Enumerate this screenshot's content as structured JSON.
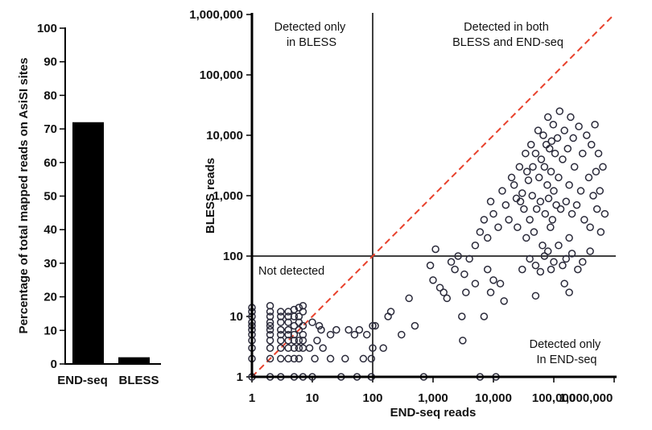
{
  "chart_data": [
    {
      "type": "bar",
      "title": "",
      "xlabel": "",
      "ylabel": "Percentage of total mapped reads on AsiSI sites",
      "ylim": [
        0,
        100
      ],
      "yticks": [
        0,
        10,
        20,
        30,
        40,
        50,
        60,
        70,
        80,
        90,
        100
      ],
      "categories": [
        "END-seq",
        "BLESS"
      ],
      "values": [
        72,
        2
      ],
      "bar_color": "#000000",
      "grid": false
    },
    {
      "type": "scatter",
      "title": "",
      "xlabel": "END-seq reads",
      "ylabel": "BLESS reads",
      "xscale": "log",
      "yscale": "log",
      "xlim": [
        1,
        1000000
      ],
      "ylim": [
        1,
        1000000
      ],
      "xticks": [
        "1",
        "10",
        "100",
        "1,000",
        "10,000",
        "100,000",
        "1,000,000"
      ],
      "yticks": [
        "1",
        "10",
        "100",
        "1,000",
        "10,000",
        "100,000",
        "1,000,000"
      ],
      "reference_line": {
        "style": "dashed",
        "color": "#e8412c",
        "from": [
          1,
          1
        ],
        "to": [
          1000000,
          1000000
        ]
      },
      "threshold_lines": {
        "x": 100,
        "y": 100,
        "color": "#000000"
      },
      "quadrant_labels": {
        "top_left": [
          "Detected only",
          "in BLESS"
        ],
        "top_right": [
          "Detected in both",
          "BLESS and END-seq"
        ],
        "bottom_left": [
          "Not detected"
        ],
        "bottom_right": [
          "Detected only",
          "In END-seq"
        ]
      },
      "marker": {
        "shape": "open-circle",
        "color": "#2a2a3a"
      },
      "points": [
        [
          1,
          1
        ],
        [
          1,
          2
        ],
        [
          1,
          3
        ],
        [
          1,
          4
        ],
        [
          1,
          5
        ],
        [
          1,
          6
        ],
        [
          1,
          7
        ],
        [
          1,
          8
        ],
        [
          1,
          10
        ],
        [
          1,
          12
        ],
        [
          1,
          14
        ],
        [
          2,
          1
        ],
        [
          2,
          2
        ],
        [
          2,
          3
        ],
        [
          2,
          4
        ],
        [
          2,
          5
        ],
        [
          2,
          6
        ],
        [
          2,
          7
        ],
        [
          2,
          8
        ],
        [
          2,
          10
        ],
        [
          2,
          12
        ],
        [
          2,
          15
        ],
        [
          3,
          1
        ],
        [
          3,
          2
        ],
        [
          3,
          3
        ],
        [
          3,
          4
        ],
        [
          3,
          5
        ],
        [
          3,
          6
        ],
        [
          3,
          8
        ],
        [
          3,
          10
        ],
        [
          3,
          12
        ],
        [
          4,
          2
        ],
        [
          4,
          3
        ],
        [
          4,
          4
        ],
        [
          4,
          5
        ],
        [
          4,
          6
        ],
        [
          4,
          8
        ],
        [
          4,
          10
        ],
        [
          4,
          12
        ],
        [
          5,
          1
        ],
        [
          5,
          2
        ],
        [
          5,
          3
        ],
        [
          5,
          4
        ],
        [
          5,
          5
        ],
        [
          5,
          7
        ],
        [
          5,
          10
        ],
        [
          5,
          13
        ],
        [
          6,
          2
        ],
        [
          6,
          3
        ],
        [
          6,
          4
        ],
        [
          6,
          6
        ],
        [
          6,
          8
        ],
        [
          6,
          10
        ],
        [
          6,
          14
        ],
        [
          7,
          1
        ],
        [
          7,
          3
        ],
        [
          7,
          4
        ],
        [
          7,
          5
        ],
        [
          7,
          7
        ],
        [
          7,
          12
        ],
        [
          7,
          15
        ],
        [
          9,
          3
        ],
        [
          10,
          1
        ],
        [
          10,
          8
        ],
        [
          11,
          2
        ],
        [
          12,
          4
        ],
        [
          13,
          7
        ],
        [
          14,
          6
        ],
        [
          15,
          3
        ],
        [
          20,
          2
        ],
        [
          20,
          5
        ],
        [
          25,
          6
        ],
        [
          30,
          1
        ],
        [
          35,
          2
        ],
        [
          40,
          6
        ],
        [
          50,
          5
        ],
        [
          55,
          1
        ],
        [
          60,
          6
        ],
        [
          70,
          2
        ],
        [
          80,
          5
        ],
        [
          95,
          1
        ],
        [
          95,
          2
        ],
        [
          100,
          3
        ],
        [
          100,
          7
        ],
        [
          110,
          7
        ],
        [
          150,
          3
        ],
        [
          180,
          10
        ],
        [
          200,
          12
        ],
        [
          300,
          5
        ],
        [
          400,
          20
        ],
        [
          500,
          7
        ],
        [
          700,
          1
        ],
        [
          900,
          70
        ],
        [
          1000,
          40
        ],
        [
          1100,
          130
        ],
        [
          1300,
          30
        ],
        [
          1500,
          25
        ],
        [
          1700,
          20
        ],
        [
          2000,
          80
        ],
        [
          2300,
          60
        ],
        [
          2600,
          100
        ],
        [
          3000,
          10
        ],
        [
          3100,
          4
        ],
        [
          3300,
          50
        ],
        [
          3500,
          25
        ],
        [
          4000,
          90
        ],
        [
          5000,
          35
        ],
        [
          6000,
          1
        ],
        [
          7000,
          10
        ],
        [
          8000,
          60
        ],
        [
          9000,
          25
        ],
        [
          10000,
          40
        ],
        [
          11000,
          1
        ],
        [
          13000,
          35
        ],
        [
          15000,
          18
        ],
        [
          5000,
          150
        ],
        [
          6000,
          250
        ],
        [
          7000,
          400
        ],
        [
          8000,
          200
        ],
        [
          9000,
          800
        ],
        [
          10000,
          500
        ],
        [
          12000,
          300
        ],
        [
          14000,
          1200
        ],
        [
          16000,
          700
        ],
        [
          18000,
          400
        ],
        [
          20000,
          2000
        ],
        [
          22000,
          1500
        ],
        [
          24000,
          900
        ],
        [
          25000,
          300
        ],
        [
          27000,
          3000
        ],
        [
          28000,
          800
        ],
        [
          30000,
          1100
        ],
        [
          32000,
          600
        ],
        [
          34000,
          5000
        ],
        [
          35000,
          200
        ],
        [
          36000,
          2500
        ],
        [
          38000,
          1800
        ],
        [
          40000,
          400
        ],
        [
          42000,
          7000
        ],
        [
          44000,
          1000
        ],
        [
          45000,
          3000
        ],
        [
          47000,
          250
        ],
        [
          50000,
          5000
        ],
        [
          52000,
          600
        ],
        [
          55000,
          12000
        ],
        [
          57000,
          2000
        ],
        [
          60000,
          800
        ],
        [
          62000,
          4000
        ],
        [
          65000,
          150
        ],
        [
          67000,
          10000
        ],
        [
          70000,
          3000
        ],
        [
          72000,
          500
        ],
        [
          75000,
          7000
        ],
        [
          78000,
          1500
        ],
        [
          80000,
          20000
        ],
        [
          82000,
          900
        ],
        [
          85000,
          6000
        ],
        [
          88000,
          300
        ],
        [
          90000,
          2500
        ],
        [
          92000,
          8000
        ],
        [
          95000,
          400
        ],
        [
          98000,
          15000
        ],
        [
          100000,
          1200
        ],
        [
          105000,
          5000
        ],
        [
          110000,
          700
        ],
        [
          115000,
          9000
        ],
        [
          120000,
          2000
        ],
        [
          125000,
          25000
        ],
        [
          130000,
          600
        ],
        [
          140000,
          4000
        ],
        [
          150000,
          12000
        ],
        [
          160000,
          800
        ],
        [
          170000,
          6000
        ],
        [
          180000,
          1500
        ],
        [
          190000,
          20000
        ],
        [
          200000,
          500
        ],
        [
          210000,
          9000
        ],
        [
          220000,
          3000
        ],
        [
          240000,
          700
        ],
        [
          260000,
          14000
        ],
        [
          280000,
          1200
        ],
        [
          300000,
          5000
        ],
        [
          320000,
          400
        ],
        [
          350000,
          10000
        ],
        [
          380000,
          2000
        ],
        [
          400000,
          300
        ],
        [
          420000,
          7000
        ],
        [
          450000,
          1000
        ],
        [
          480000,
          15000
        ],
        [
          500000,
          2500
        ],
        [
          520000,
          600
        ],
        [
          550000,
          5000
        ],
        [
          580000,
          1200
        ],
        [
          600000,
          250
        ],
        [
          650000,
          3000
        ],
        [
          700000,
          500
        ],
        [
          30000,
          60
        ],
        [
          40000,
          90
        ],
        [
          50000,
          70
        ],
        [
          60000,
          55
        ],
        [
          70000,
          100
        ],
        [
          80000,
          120
        ],
        [
          90000,
          60
        ],
        [
          100000,
          80
        ],
        [
          120000,
          150
        ],
        [
          140000,
          70
        ],
        [
          160000,
          90
        ],
        [
          180000,
          200
        ],
        [
          200000,
          110
        ],
        [
          250000,
          60
        ],
        [
          300000,
          80
        ],
        [
          400000,
          120
        ],
        [
          180000,
          25
        ],
        [
          150000,
          35
        ],
        [
          50000,
          22
        ]
      ]
    }
  ]
}
